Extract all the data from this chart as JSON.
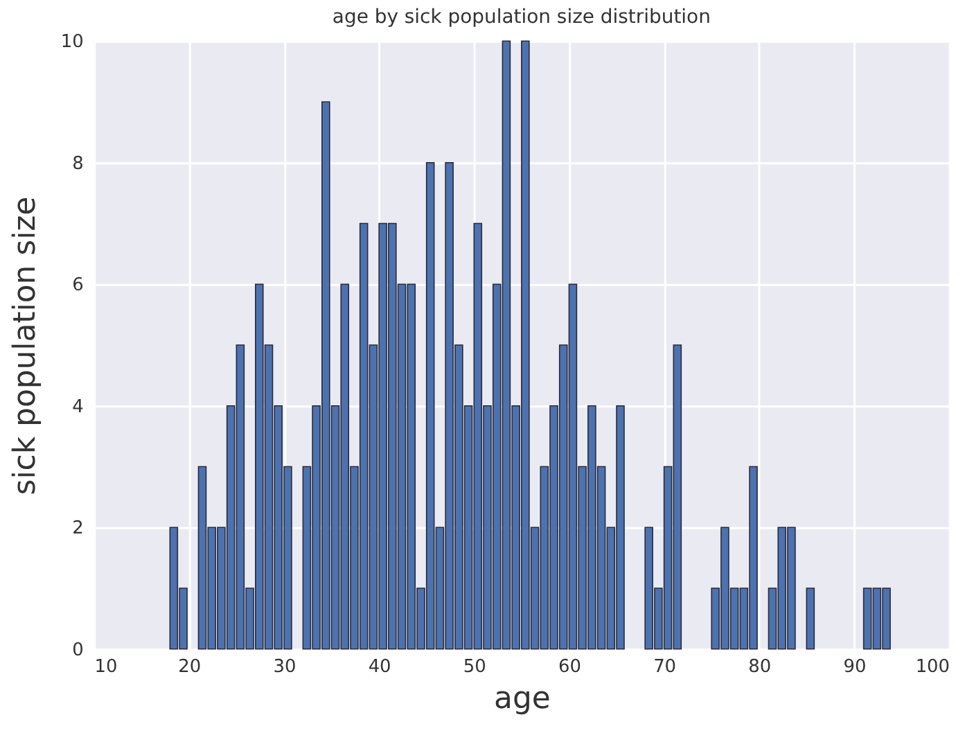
{
  "chart_data": {
    "type": "bar",
    "title": "age by sick population size distribution",
    "xlabel": "age",
    "ylabel": "sick population size",
    "x": [
      18,
      19,
      21,
      22,
      23,
      24,
      25,
      26,
      27,
      28,
      29,
      30,
      32,
      33,
      34,
      35,
      36,
      37,
      38,
      39,
      40,
      41,
      42,
      43,
      44,
      45,
      46,
      47,
      48,
      49,
      50,
      51,
      52,
      53,
      54,
      55,
      56,
      57,
      58,
      59,
      60,
      61,
      62,
      63,
      64,
      65,
      68,
      69,
      70,
      71,
      75,
      76,
      77,
      78,
      79,
      81,
      82,
      83,
      85,
      91,
      92,
      93
    ],
    "values": [
      2,
      1,
      3,
      2,
      2,
      4,
      5,
      1,
      6,
      5,
      4,
      3,
      3,
      4,
      9,
      4,
      6,
      3,
      7,
      5,
      7,
      7,
      6,
      6,
      1,
      8,
      2,
      8,
      5,
      4,
      7,
      4,
      6,
      10,
      4,
      10,
      2,
      3,
      4,
      5,
      6,
      3,
      4,
      3,
      2,
      4,
      2,
      1,
      3,
      5,
      1,
      2,
      1,
      1,
      3,
      1,
      2,
      2,
      1,
      1,
      1,
      1
    ],
    "color": "#4c72b0",
    "xlim": [
      10,
      100
    ],
    "xticks": [
      10,
      20,
      30,
      40,
      50,
      60,
      70,
      80,
      90,
      100
    ],
    "ylim": [
      0,
      10
    ],
    "yticks": [
      0,
      2,
      4,
      6,
      8,
      10
    ],
    "grid": true
  }
}
